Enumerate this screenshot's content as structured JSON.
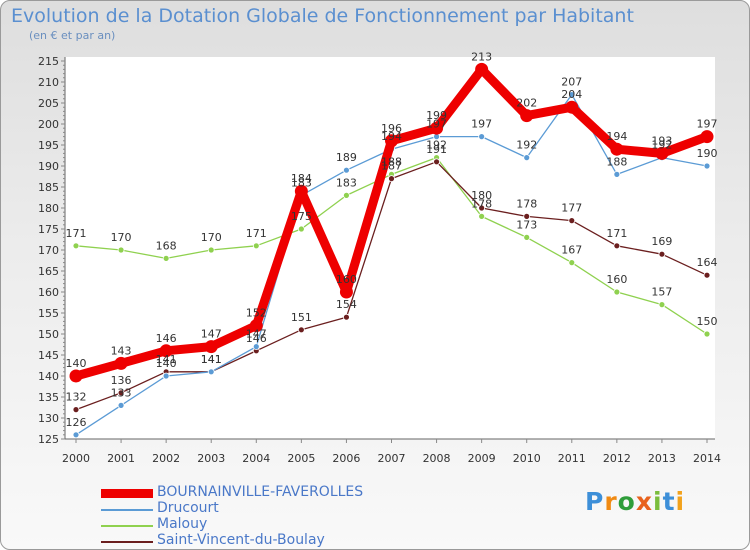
{
  "header": {
    "title": "Evolution de la Dotation Globale de Fonctionnement par Habitant",
    "subtitle": "(en € et par an)"
  },
  "brand": {
    "letters": [
      "P",
      "r",
      "o",
      "x",
      "i",
      "t",
      "i"
    ]
  },
  "chart_data": {
    "type": "line",
    "title": "Evolution de la Dotation Globale de Fonctionnement par Habitant",
    "subtitle": "(en € et par an)",
    "xlabel": "",
    "ylabel": "",
    "x": [
      "2000",
      "2001",
      "2002",
      "2003",
      "2004",
      "2005",
      "2006",
      "2007",
      "2008",
      "2009",
      "2010",
      "2011",
      "2012",
      "2013",
      "2014"
    ],
    "ylim": [
      125,
      215
    ],
    "yticks": [
      125,
      130,
      135,
      140,
      145,
      150,
      155,
      160,
      165,
      170,
      175,
      180,
      185,
      190,
      195,
      200,
      205,
      210,
      215
    ],
    "grid": false,
    "legend_position": "bottom-left",
    "series": [
      {
        "name": "BOURNAINVILLE-FAVEROLLES",
        "color": "#ee0000",
        "values": [
          140,
          143,
          146,
          147,
          152,
          184,
          160,
          196,
          199,
          213,
          202,
          204,
          194,
          193,
          197
        ]
      },
      {
        "name": "Drucourt",
        "color": "#5b9bd5",
        "values": [
          126,
          133,
          140,
          141,
          147,
          183,
          189,
          194,
          197,
          197,
          192,
          207,
          188,
          192,
          190
        ]
      },
      {
        "name": "Malouy",
        "color": "#8fd14f",
        "values": [
          171,
          170,
          168,
          170,
          171,
          175,
          183,
          188,
          192,
          178,
          173,
          167,
          160,
          157,
          150
        ]
      },
      {
        "name": "Saint-Vincent-du-Boulay",
        "color": "#6b1f1f",
        "values": [
          132,
          136,
          141,
          141,
          146,
          151,
          154,
          187,
          191,
          180,
          178,
          177,
          171,
          169,
          164
        ]
      }
    ]
  }
}
